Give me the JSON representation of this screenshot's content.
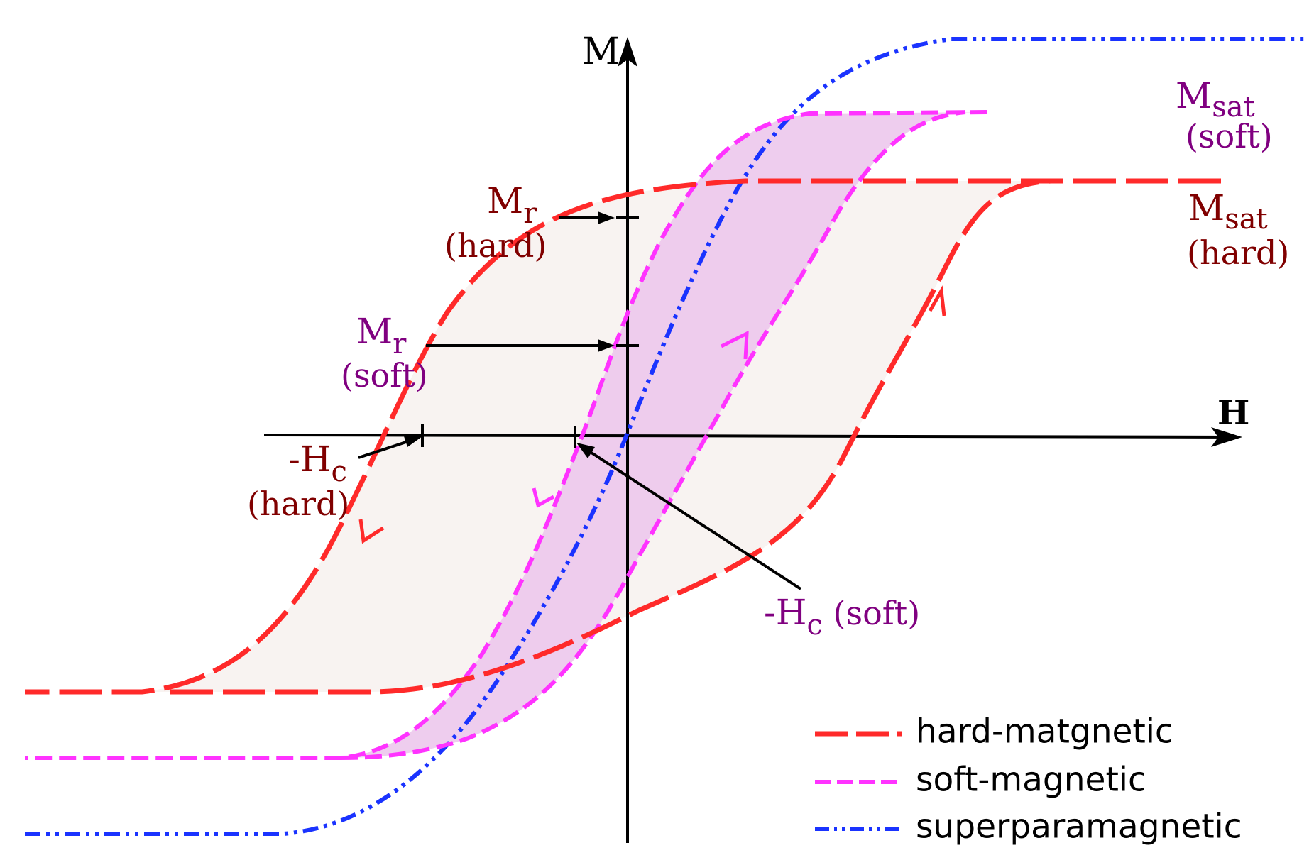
{
  "axes": {
    "x_label": "H",
    "y_label": "M"
  },
  "annotations": {
    "mr_hard": {
      "main": "M",
      "sub": "r",
      "line2": "(hard)"
    },
    "mr_soft": {
      "main": "M",
      "sub": "r",
      "line2": "(soft)"
    },
    "hc_hard": {
      "main": "-H",
      "sub": "c",
      "line2": "(hard)"
    },
    "hc_soft": {
      "main": "-H",
      "sub": "c",
      "rest": " (soft)"
    },
    "msat_soft": {
      "main": "M",
      "sub": "sat",
      "line2": "(soft)"
    },
    "msat_hard": {
      "main": "M",
      "sub": "sat",
      "line2": "(hard)"
    }
  },
  "legend": {
    "items": [
      {
        "label": "hard-matgnetic",
        "color": "#ff2a2a",
        "style": "long-dash"
      },
      {
        "label": "soft-magnetic",
        "color": "#ff33ff",
        "style": "short-dash"
      },
      {
        "label": "superparamagnetic",
        "color": "#1a33ff",
        "style": "dash-dot-dot"
      }
    ]
  },
  "colors": {
    "hard": "#ff2a2a",
    "soft": "#ff33ff",
    "super": "#1a33ff",
    "hard_fill": "#f8f3f1",
    "soft_fill": "#ecc8ec",
    "hard_text": "#800000",
    "soft_text": "#800080",
    "axis": "#000000"
  }
}
